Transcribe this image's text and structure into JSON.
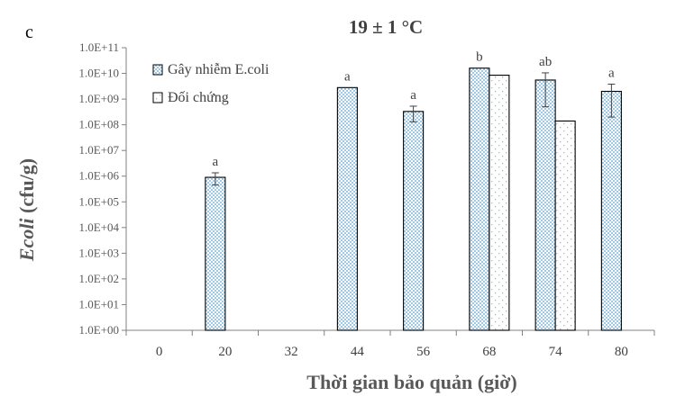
{
  "panel_label": "c",
  "chart_data": {
    "type": "bar",
    "title": "19 ± 1 °C",
    "xlabel": "Thời gian bảo quản (giờ)",
    "ylabel_italic": "Ecoli",
    "ylabel_rest": " (cfu/g)",
    "yscale": "log",
    "ylim": [
      1,
      100000000000
    ],
    "yticks": [
      "1.0E+00",
      "1.0E+01",
      "1.0E+02",
      "1.0E+03",
      "1.0E+04",
      "1.0E+05",
      "1.0E+06",
      "1.0E+07",
      "1.0E+08",
      "1.0E+09",
      "1.0E+10",
      "1.0E+11"
    ],
    "categories": [
      "0",
      "20",
      "32",
      "44",
      "56",
      "68",
      "74",
      "80"
    ],
    "legend_position": "top-left",
    "grid": false,
    "series": [
      {
        "name": "Gây nhiễm E.coli",
        "pattern": "dense-blue-dots",
        "values": [
          null,
          900000,
          null,
          2800000000,
          330000000,
          16000000000,
          5500000000,
          2000000000
        ],
        "errors": [
          null,
          450000,
          null,
          null,
          200000000,
          null,
          5000000000,
          1800000000
        ],
        "letters": [
          null,
          "a",
          null,
          "a",
          "a",
          "b",
          "ab",
          "a"
        ]
      },
      {
        "name": "Đối chứng",
        "pattern": "sparse-blue-dots",
        "values": [
          null,
          null,
          null,
          null,
          null,
          8500000000,
          140000000,
          null
        ],
        "errors": [
          null,
          null,
          null,
          null,
          null,
          null,
          null,
          null
        ]
      }
    ]
  }
}
